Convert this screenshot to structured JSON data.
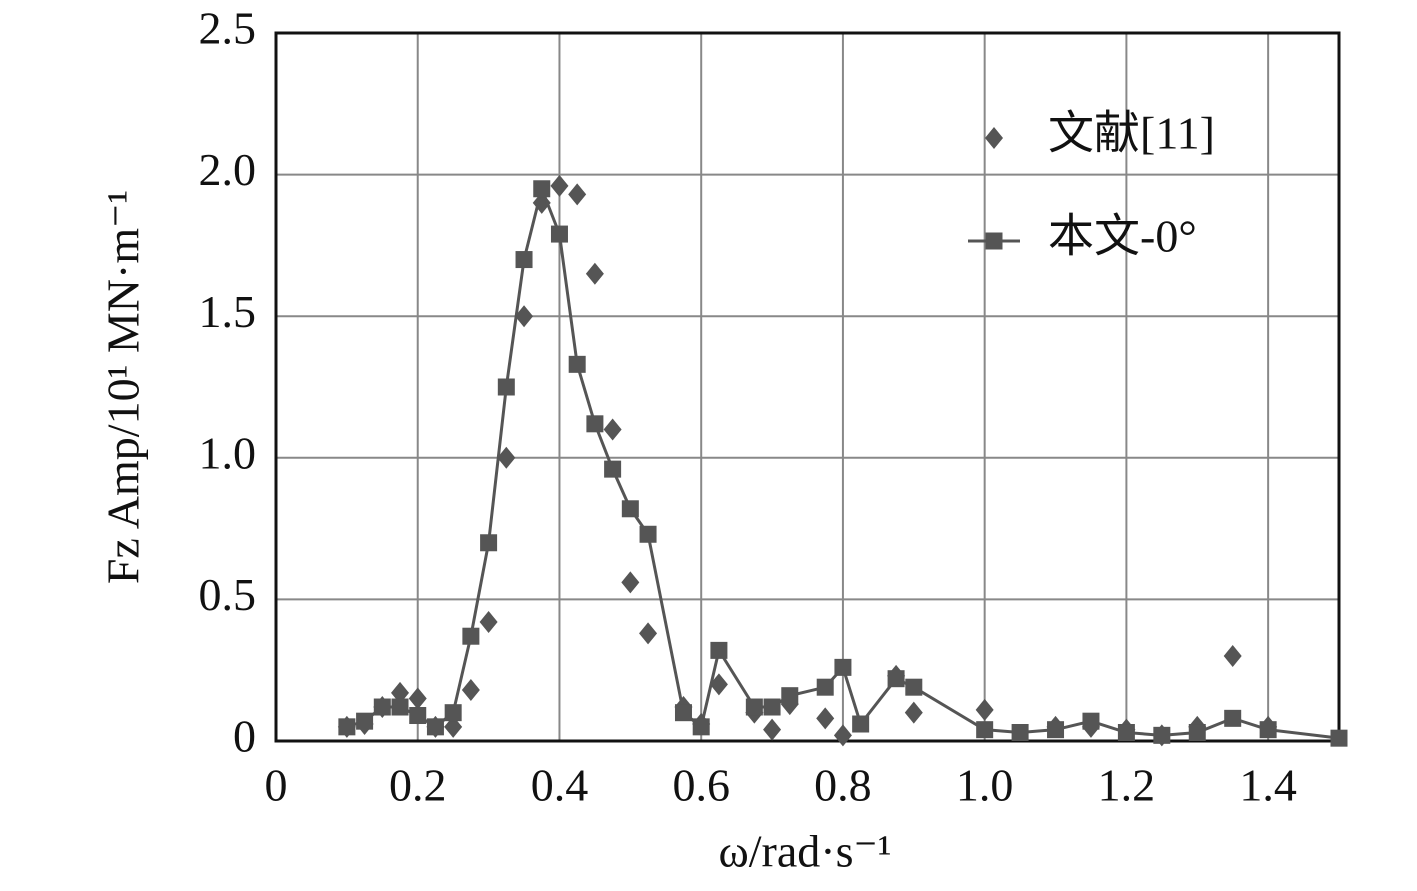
{
  "chart_data": {
    "type": "scatter",
    "xlabel": "ω/rad·s⁻¹",
    "ylabel": "Fz Amp/10¹ MN·m⁻¹",
    "xlim": [
      0,
      1.5
    ],
    "ylim": [
      0,
      2.5
    ],
    "xticks": [
      0,
      0.2,
      0.4,
      0.6,
      0.8,
      {
        "value": 1,
        "label": "1.0"
      },
      1.2,
      1.4
    ],
    "yticks": [
      0,
      0.5,
      {
        "value": 1,
        "label": "1.0"
      },
      1.5,
      {
        "value": 2,
        "label": "2.0"
      },
      2.5
    ],
    "grid": true,
    "legend": "upper right",
    "series": [
      {
        "name": "文献[11]",
        "color": "#555555",
        "marker": "diamond",
        "line": false,
        "x": [
          0.1,
          0.125,
          0.15,
          0.175,
          0.2,
          0.225,
          0.25,
          0.275,
          0.3,
          0.325,
          0.35,
          0.375,
          0.4,
          0.425,
          0.45,
          0.475,
          0.5,
          0.525,
          0.575,
          0.6,
          0.625,
          0.675,
          0.7,
          0.725,
          0.775,
          0.8,
          0.875,
          0.9,
          1.0,
          1.1,
          1.15,
          1.2,
          1.25,
          1.3,
          1.35,
          1.4
        ],
        "values": [
          0.05,
          0.06,
          0.12,
          0.17,
          0.15,
          0.05,
          0.05,
          0.18,
          0.42,
          1.0,
          1.5,
          1.9,
          1.96,
          1.93,
          1.65,
          1.1,
          0.56,
          0.38,
          0.12,
          0.06,
          0.2,
          0.1,
          0.04,
          0.13,
          0.08,
          0.02,
          0.23,
          0.1,
          0.11,
          0.05,
          0.05,
          0.04,
          0.02,
          0.05,
          0.3,
          0.05
        ]
      },
      {
        "name": "本文-0°",
        "color": "#555555",
        "marker": "square",
        "line": true,
        "x": [
          0.1,
          0.125,
          0.15,
          0.175,
          0.2,
          0.225,
          0.25,
          0.275,
          0.3,
          0.325,
          0.35,
          0.375,
          0.4,
          0.425,
          0.45,
          0.475,
          0.5,
          0.525,
          0.575,
          0.6,
          0.625,
          0.675,
          0.7,
          0.725,
          0.775,
          0.8,
          0.825,
          0.875,
          0.9,
          1.0,
          1.05,
          1.1,
          1.15,
          1.2,
          1.25,
          1.3,
          1.35,
          1.4,
          1.5
        ],
        "values": [
          0.05,
          0.07,
          0.12,
          0.12,
          0.09,
          0.05,
          0.1,
          0.37,
          0.7,
          1.25,
          1.7,
          1.95,
          1.79,
          1.33,
          1.12,
          0.96,
          0.82,
          0.73,
          0.1,
          0.05,
          0.32,
          0.12,
          0.12,
          0.16,
          0.19,
          0.26,
          0.06,
          0.22,
          0.19,
          0.04,
          0.03,
          0.04,
          0.07,
          0.03,
          0.02,
          0.03,
          0.08,
          0.04,
          0.01
        ]
      }
    ]
  }
}
